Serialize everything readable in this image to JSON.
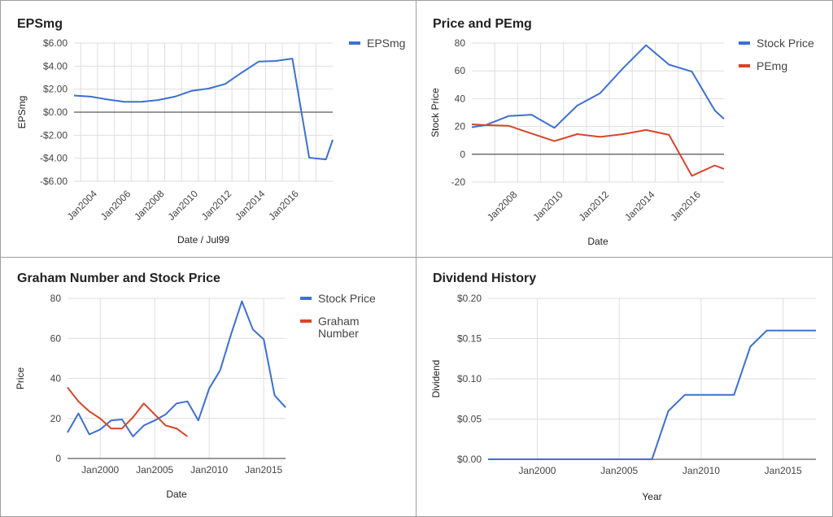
{
  "chart_data": [
    {
      "type": "line",
      "title": "EPSmg",
      "xlabel": "Date / Jul99",
      "ylabel": "EPSmg",
      "ylim": [
        -6,
        6
      ],
      "yticks": [
        "$6.00",
        "$4.00",
        "$2.00",
        "$0.00",
        "-$2.00",
        "-$4.00",
        "-$6.00"
      ],
      "xticks": [
        "Jan2004",
        "Jan2006",
        "Jan2008",
        "Jan2010",
        "Jan2012",
        "Jan2014",
        "Jan2016"
      ],
      "legend": "right",
      "grid": true,
      "series": [
        {
          "name": "EPSmg",
          "color": "#3c6fd6",
          "points": [
            [
              "2002.6",
              1.45
            ],
            [
              "2003.6",
              1.35
            ],
            [
              "2004.6",
              1.1
            ],
            [
              "2005.6",
              0.9
            ],
            [
              "2006.6",
              0.9
            ],
            [
              "2007.6",
              1.05
            ],
            [
              "2008.6",
              1.35
            ],
            [
              "2009.6",
              1.85
            ],
            [
              "2010.6",
              2.05
            ],
            [
              "2011.6",
              2.45
            ],
            [
              "2012.6",
              3.45
            ],
            [
              "2013.6",
              4.4
            ],
            [
              "2014.6",
              4.45
            ],
            [
              "2015.6",
              4.65
            ],
            [
              "2016.6",
              -3.95
            ],
            [
              "2017.6",
              -4.1
            ],
            [
              "2018.0",
              -2.4
            ]
          ]
        }
      ]
    },
    {
      "type": "line",
      "title": "Price and PEmg",
      "xlabel": "Date",
      "ylabel": "Stock Price",
      "ylim": [
        -20,
        80
      ],
      "yticks": [
        "80",
        "60",
        "40",
        "20",
        "0",
        "-20"
      ],
      "xticks": [
        "Jan2008",
        "Jan2010",
        "Jan2012",
        "Jan2014",
        "Jan2016"
      ],
      "legend": "right",
      "grid": true,
      "series": [
        {
          "name": "Stock Price",
          "color": "#3c6fd6",
          "points": [
            [
              "2006.0",
              19.5
            ],
            [
              "2006.6",
              21
            ],
            [
              "2007.6",
              27.5
            ],
            [
              "2008.6",
              28.5
            ],
            [
              "2009.6",
              19
            ],
            [
              "2010.6",
              35
            ],
            [
              "2011.6",
              44
            ],
            [
              "2012.6",
              62
            ],
            [
              "2013.6",
              78.5
            ],
            [
              "2014.6",
              64.5
            ],
            [
              "2015.6",
              59.5
            ],
            [
              "2016.6",
              31.5
            ],
            [
              "2017.0",
              25.5
            ]
          ]
        },
        {
          "name": "PEmg",
          "color": "#d9442a",
          "points": [
            [
              "2006.0",
              21.5
            ],
            [
              "2006.6",
              21
            ],
            [
              "2007.6",
              20.5
            ],
            [
              "2008.6",
              15
            ],
            [
              "2009.6",
              9.5
            ],
            [
              "2010.6",
              14.5
            ],
            [
              "2011.6",
              12.5
            ],
            [
              "2012.6",
              14.5
            ],
            [
              "2013.6",
              17.5
            ],
            [
              "2014.6",
              14
            ],
            [
              "2015.6",
              -15.5
            ],
            [
              "2016.6",
              -8
            ],
            [
              "2017.0",
              -10.5
            ]
          ]
        }
      ]
    },
    {
      "type": "line",
      "title": "Graham Number and Stock Price",
      "xlabel": "Date",
      "ylabel": "Price",
      "ylim": [
        0,
        80
      ],
      "yticks": [
        "80",
        "60",
        "40",
        "20",
        "0"
      ],
      "xticks": [
        "Jan2000",
        "Jan2005",
        "Jan2010",
        "Jan2015"
      ],
      "legend": "right",
      "grid": true,
      "series": [
        {
          "name": "Stock Price",
          "color": "#3c6fd6",
          "points": [
            [
              "1997.0",
              13
            ],
            [
              "1998.0",
              22.5
            ],
            [
              "1999.0",
              12
            ],
            [
              "2000.0",
              14.5
            ],
            [
              "2001.0",
              19
            ],
            [
              "2002.0",
              19.5
            ],
            [
              "2003.0",
              11
            ],
            [
              "2004.0",
              16.5
            ],
            [
              "2005.0",
              19
            ],
            [
              "2006.0",
              22
            ],
            [
              "2007.0",
              27.5
            ],
            [
              "2008.0",
              28.5
            ],
            [
              "2009.0",
              19
            ],
            [
              "2010.0",
              35
            ],
            [
              "2011.0",
              44
            ],
            [
              "2012.0",
              62
            ],
            [
              "2013.0",
              78.5
            ],
            [
              "2014.0",
              64.5
            ],
            [
              "2015.0",
              59.5
            ],
            [
              "2016.0",
              31.5
            ],
            [
              "2017.0",
              25.5
            ]
          ]
        },
        {
          "name": "Graham Number",
          "color": "#d9442a",
          "points": [
            [
              "1997.0",
              35.5
            ],
            [
              "1998.0",
              28.5
            ],
            [
              "1999.0",
              23.5
            ],
            [
              "2000.0",
              20
            ],
            [
              "2001.0",
              15
            ],
            [
              "2002.0",
              15
            ],
            [
              "2003.0",
              20.5
            ],
            [
              "2004.0",
              27.5
            ],
            [
              "2005.0",
              22
            ],
            [
              "2006.0",
              16.5
            ],
            [
              "2007.0",
              15
            ],
            [
              "2008.0",
              11
            ]
          ]
        }
      ]
    },
    {
      "type": "line",
      "title": "Dividend History",
      "xlabel": "Year",
      "ylabel": "Dividend",
      "ylim": [
        0,
        0.2
      ],
      "yticks": [
        "$0.20",
        "$0.15",
        "$0.10",
        "$0.05",
        "$0.00"
      ],
      "xticks": [
        "Jan2000",
        "Jan2005",
        "Jan2010",
        "Jan2015"
      ],
      "grid": true,
      "series": [
        {
          "name": "Dividend",
          "color": "#3c6fd6",
          "points": [
            [
              "1997.0",
              0
            ],
            [
              "1998.0",
              0
            ],
            [
              "2007.0",
              0
            ],
            [
              "2008.0",
              0.06
            ],
            [
              "2009.0",
              0.08
            ],
            [
              "2010.0",
              0.08
            ],
            [
              "2011.0",
              0.08
            ],
            [
              "2012.0",
              0.08
            ],
            [
              "2013.0",
              0.14
            ],
            [
              "2014.0",
              0.16
            ],
            [
              "2015.0",
              0.16
            ],
            [
              "2016.0",
              0.16
            ],
            [
              "2017.0",
              0.16
            ]
          ]
        }
      ]
    }
  ]
}
